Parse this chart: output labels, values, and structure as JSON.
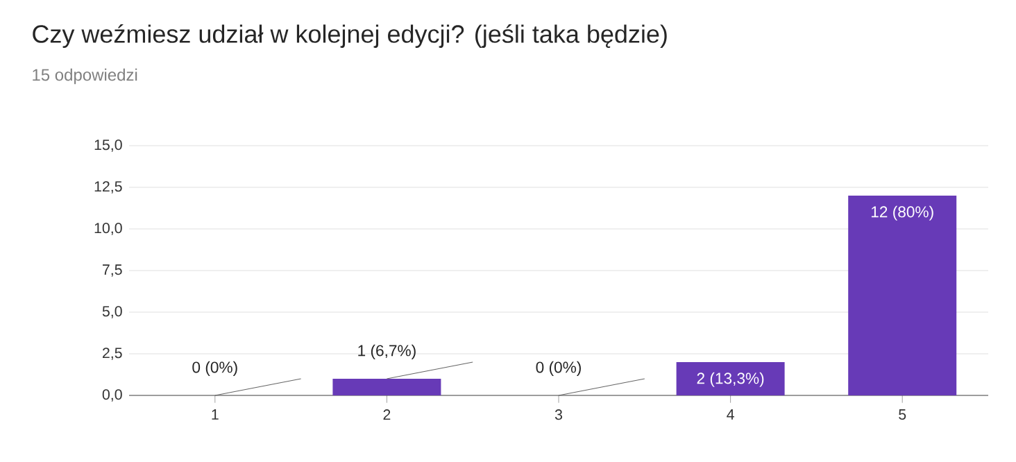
{
  "chart_data": {
    "type": "bar",
    "title": "Czy weźmiesz udział w kolejnej edycji? (jeśli taka będzie)",
    "subtitle": "15 odpowiedzi",
    "categories": [
      "1",
      "2",
      "3",
      "4",
      "5"
    ],
    "values": [
      0,
      1,
      0,
      2,
      12
    ],
    "value_labels": [
      "0 (0%)",
      "1 (6,7%)",
      "0 (0%)",
      "2 (13,3%)",
      "12 (80%)"
    ],
    "color": "#673ab7",
    "ylim": [
      0,
      15
    ],
    "yticks": [
      {
        "value": 0,
        "label": "0,0"
      },
      {
        "value": 2.5,
        "label": "2,5"
      },
      {
        "value": 5,
        "label": "5,0"
      },
      {
        "value": 7.5,
        "label": "7,5"
      },
      {
        "value": 10,
        "label": "10,0"
      },
      {
        "value": 12.5,
        "label": "12,5"
      },
      {
        "value": 15,
        "label": "15,0"
      }
    ],
    "grid": true
  }
}
